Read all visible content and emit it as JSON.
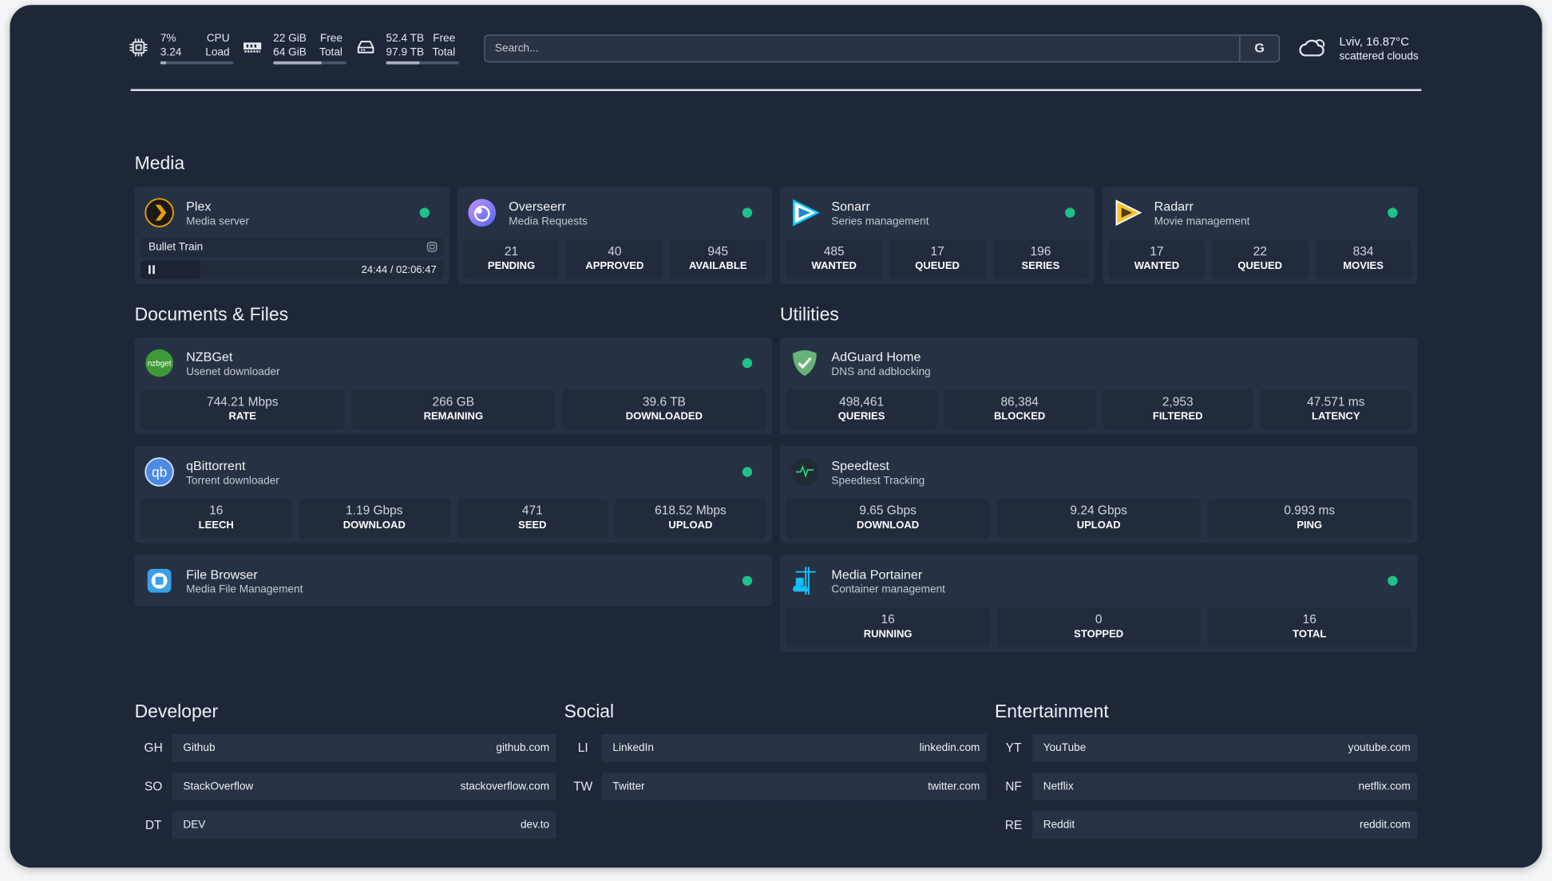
{
  "topbar": {
    "cpu": {
      "icon": "cpu-icon",
      "v1": "7%",
      "v2": "3.24",
      "l1": "CPU",
      "l2": "Load",
      "usage": 0.07
    },
    "memory": {
      "icon": "memory-icon",
      "v1": "22 GiB",
      "v2": "64 GiB",
      "l1": "Free",
      "l2": "Total",
      "usage": 0.66
    },
    "disk": {
      "icon": "disk-icon",
      "v1": "52.4 TB",
      "v2": "97.9 TB",
      "l1": "Free",
      "l2": "Total",
      "usage": 0.46
    },
    "search": {
      "placeholder": "Search...",
      "button": "G"
    },
    "weather": {
      "icon": "cloud-icon",
      "location_temp": "Lviv, 16.87°C",
      "condition": "scattered clouds"
    }
  },
  "colors": {
    "background": "#1e2738",
    "card": "#273144",
    "status_ok": "#1fc286"
  },
  "sections": {
    "media": "Media",
    "documents": "Documents & Files",
    "utilities": "Utilities",
    "developer": "Developer",
    "social": "Social",
    "entertainment": "Entertainment"
  },
  "plex": {
    "title": "Plex",
    "subtitle": "Media server",
    "now_playing": "Bullet Train",
    "time": "24:44 / 02:06:47",
    "progress": 0.195
  },
  "cards": [
    {
      "id": "overseerr",
      "title": "Overseerr",
      "subtitle": "Media Requests",
      "icon": "overseerr-icon",
      "stats": [
        {
          "v": "21",
          "l": "PENDING"
        },
        {
          "v": "40",
          "l": "APPROVED"
        },
        {
          "v": "945",
          "l": "AVAILABLE"
        }
      ]
    },
    {
      "id": "sonarr",
      "title": "Sonarr",
      "subtitle": "Series management",
      "icon": "sonarr-icon",
      "stats": [
        {
          "v": "485",
          "l": "WANTED"
        },
        {
          "v": "17",
          "l": "QUEUED"
        },
        {
          "v": "196",
          "l": "SERIES"
        }
      ]
    },
    {
      "id": "radarr",
      "title": "Radarr",
      "subtitle": "Movie management",
      "icon": "radarr-icon",
      "stats": [
        {
          "v": "17",
          "l": "WANTED"
        },
        {
          "v": "22",
          "l": "QUEUED"
        },
        {
          "v": "834",
          "l": "MOVIES"
        }
      ]
    },
    {
      "id": "nzbget",
      "title": "NZBGet",
      "subtitle": "Usenet downloader",
      "icon": "nzbget-icon",
      "stats": [
        {
          "v": "744.21 Mbps",
          "l": "RATE"
        },
        {
          "v": "266 GB",
          "l": "REMAINING"
        },
        {
          "v": "39.6 TB",
          "l": "DOWNLOADED"
        }
      ]
    },
    {
      "id": "qbittorrent",
      "title": "qBittorrent",
      "subtitle": "Torrent downloader",
      "icon": "qbittorrent-icon",
      "stats": [
        {
          "v": "16",
          "l": "LEECH"
        },
        {
          "v": "1.19 Gbps",
          "l": "DOWNLOAD"
        },
        {
          "v": "471",
          "l": "SEED"
        },
        {
          "v": "618.52 Mbps",
          "l": "UPLOAD"
        }
      ]
    },
    {
      "id": "filebrowser",
      "title": "File Browser",
      "subtitle": "Media File Management",
      "icon": "file-browser-icon",
      "stats": []
    },
    {
      "id": "adguard",
      "title": "AdGuard Home",
      "subtitle": "DNS and adblocking",
      "icon": "adguard-icon",
      "stats": [
        {
          "v": "498,461",
          "l": "QUERIES"
        },
        {
          "v": "86,384",
          "l": "BLOCKED"
        },
        {
          "v": "2,953",
          "l": "FILTERED"
        },
        {
          "v": "47.571 ms",
          "l": "LATENCY"
        }
      ]
    },
    {
      "id": "speedtest",
      "title": "Speedtest",
      "subtitle": "Speedtest Tracking",
      "icon": "speedtest-icon",
      "stats": [
        {
          "v": "9.65 Gbps",
          "l": "DOWNLOAD"
        },
        {
          "v": "9.24 Gbps",
          "l": "UPLOAD"
        },
        {
          "v": "0.993 ms",
          "l": "PING"
        }
      ]
    },
    {
      "id": "portainer",
      "title": "Media Portainer",
      "subtitle": "Container management",
      "icon": "portainer-icon",
      "stats": [
        {
          "v": "16",
          "l": "RUNNING"
        },
        {
          "v": "0",
          "l": "STOPPED"
        },
        {
          "v": "16",
          "l": "TOTAL"
        }
      ]
    }
  ],
  "bookmarks": {
    "developer": [
      {
        "abbr": "GH",
        "name": "Github",
        "url": "github.com"
      },
      {
        "abbr": "SO",
        "name": "StackOverflow",
        "url": "stackoverflow.com"
      },
      {
        "abbr": "DT",
        "name": "DEV",
        "url": "dev.to"
      }
    ],
    "social": [
      {
        "abbr": "LI",
        "name": "LinkedIn",
        "url": "linkedin.com"
      },
      {
        "abbr": "TW",
        "name": "Twitter",
        "url": "twitter.com"
      }
    ],
    "entertainment": [
      {
        "abbr": "YT",
        "name": "YouTube",
        "url": "youtube.com"
      },
      {
        "abbr": "NF",
        "name": "Netflix",
        "url": "netflix.com"
      },
      {
        "abbr": "RE",
        "name": "Reddit",
        "url": "reddit.com"
      }
    ]
  }
}
